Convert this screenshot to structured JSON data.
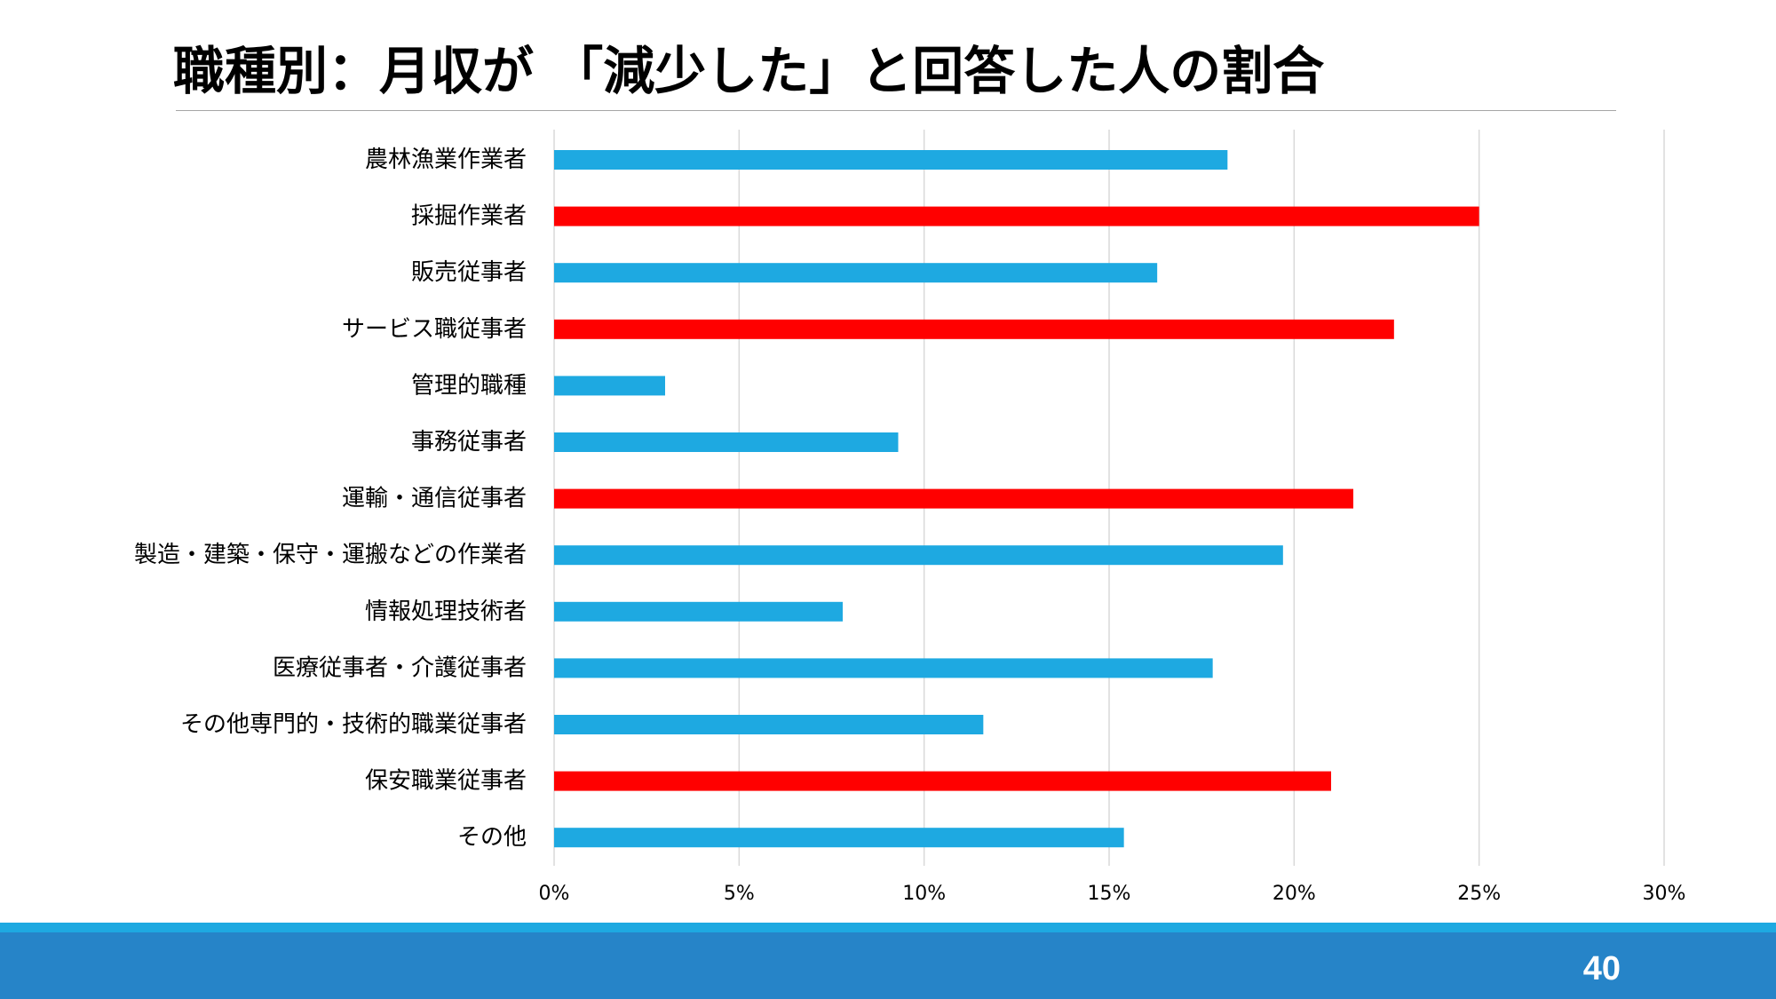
{
  "slide": {
    "title": "職種別：月収が 「減少した」と回答した人の割合",
    "page_number": "40"
  },
  "colors": {
    "default_bar": "#1ea9e1",
    "highlight_bar": "#ff0000",
    "grid": "#d9d9d9",
    "footer_light": "#1ea9e1",
    "footer_dark": "#2684c8"
  },
  "chart_data": {
    "type": "bar",
    "orientation": "horizontal",
    "title": "",
    "xlabel": "",
    "ylabel": "",
    "xlim": [
      0,
      30
    ],
    "x_ticks": [
      0,
      5,
      10,
      15,
      20,
      25,
      30
    ],
    "tick_suffix": "%",
    "grid": true,
    "legend": "none",
    "categories": [
      "農林漁業作業者",
      "採掘作業者",
      "販売従事者",
      "サービス職従事者",
      "管理的職種",
      "事務従事者",
      "運輸・通信従事者",
      "製造・建築・保守・運搬などの作業者",
      "情報処理技術者",
      "医療従事者・介護従事者",
      "その他専門的・技術的職業従事者",
      "保安職業従事者",
      "その他"
    ],
    "values": [
      18.2,
      25.0,
      16.3,
      22.7,
      3.0,
      9.3,
      21.6,
      19.7,
      7.8,
      17.8,
      11.6,
      21.0,
      15.4
    ],
    "highlighted": [
      false,
      true,
      false,
      true,
      false,
      false,
      true,
      false,
      false,
      false,
      false,
      true,
      false
    ]
  }
}
